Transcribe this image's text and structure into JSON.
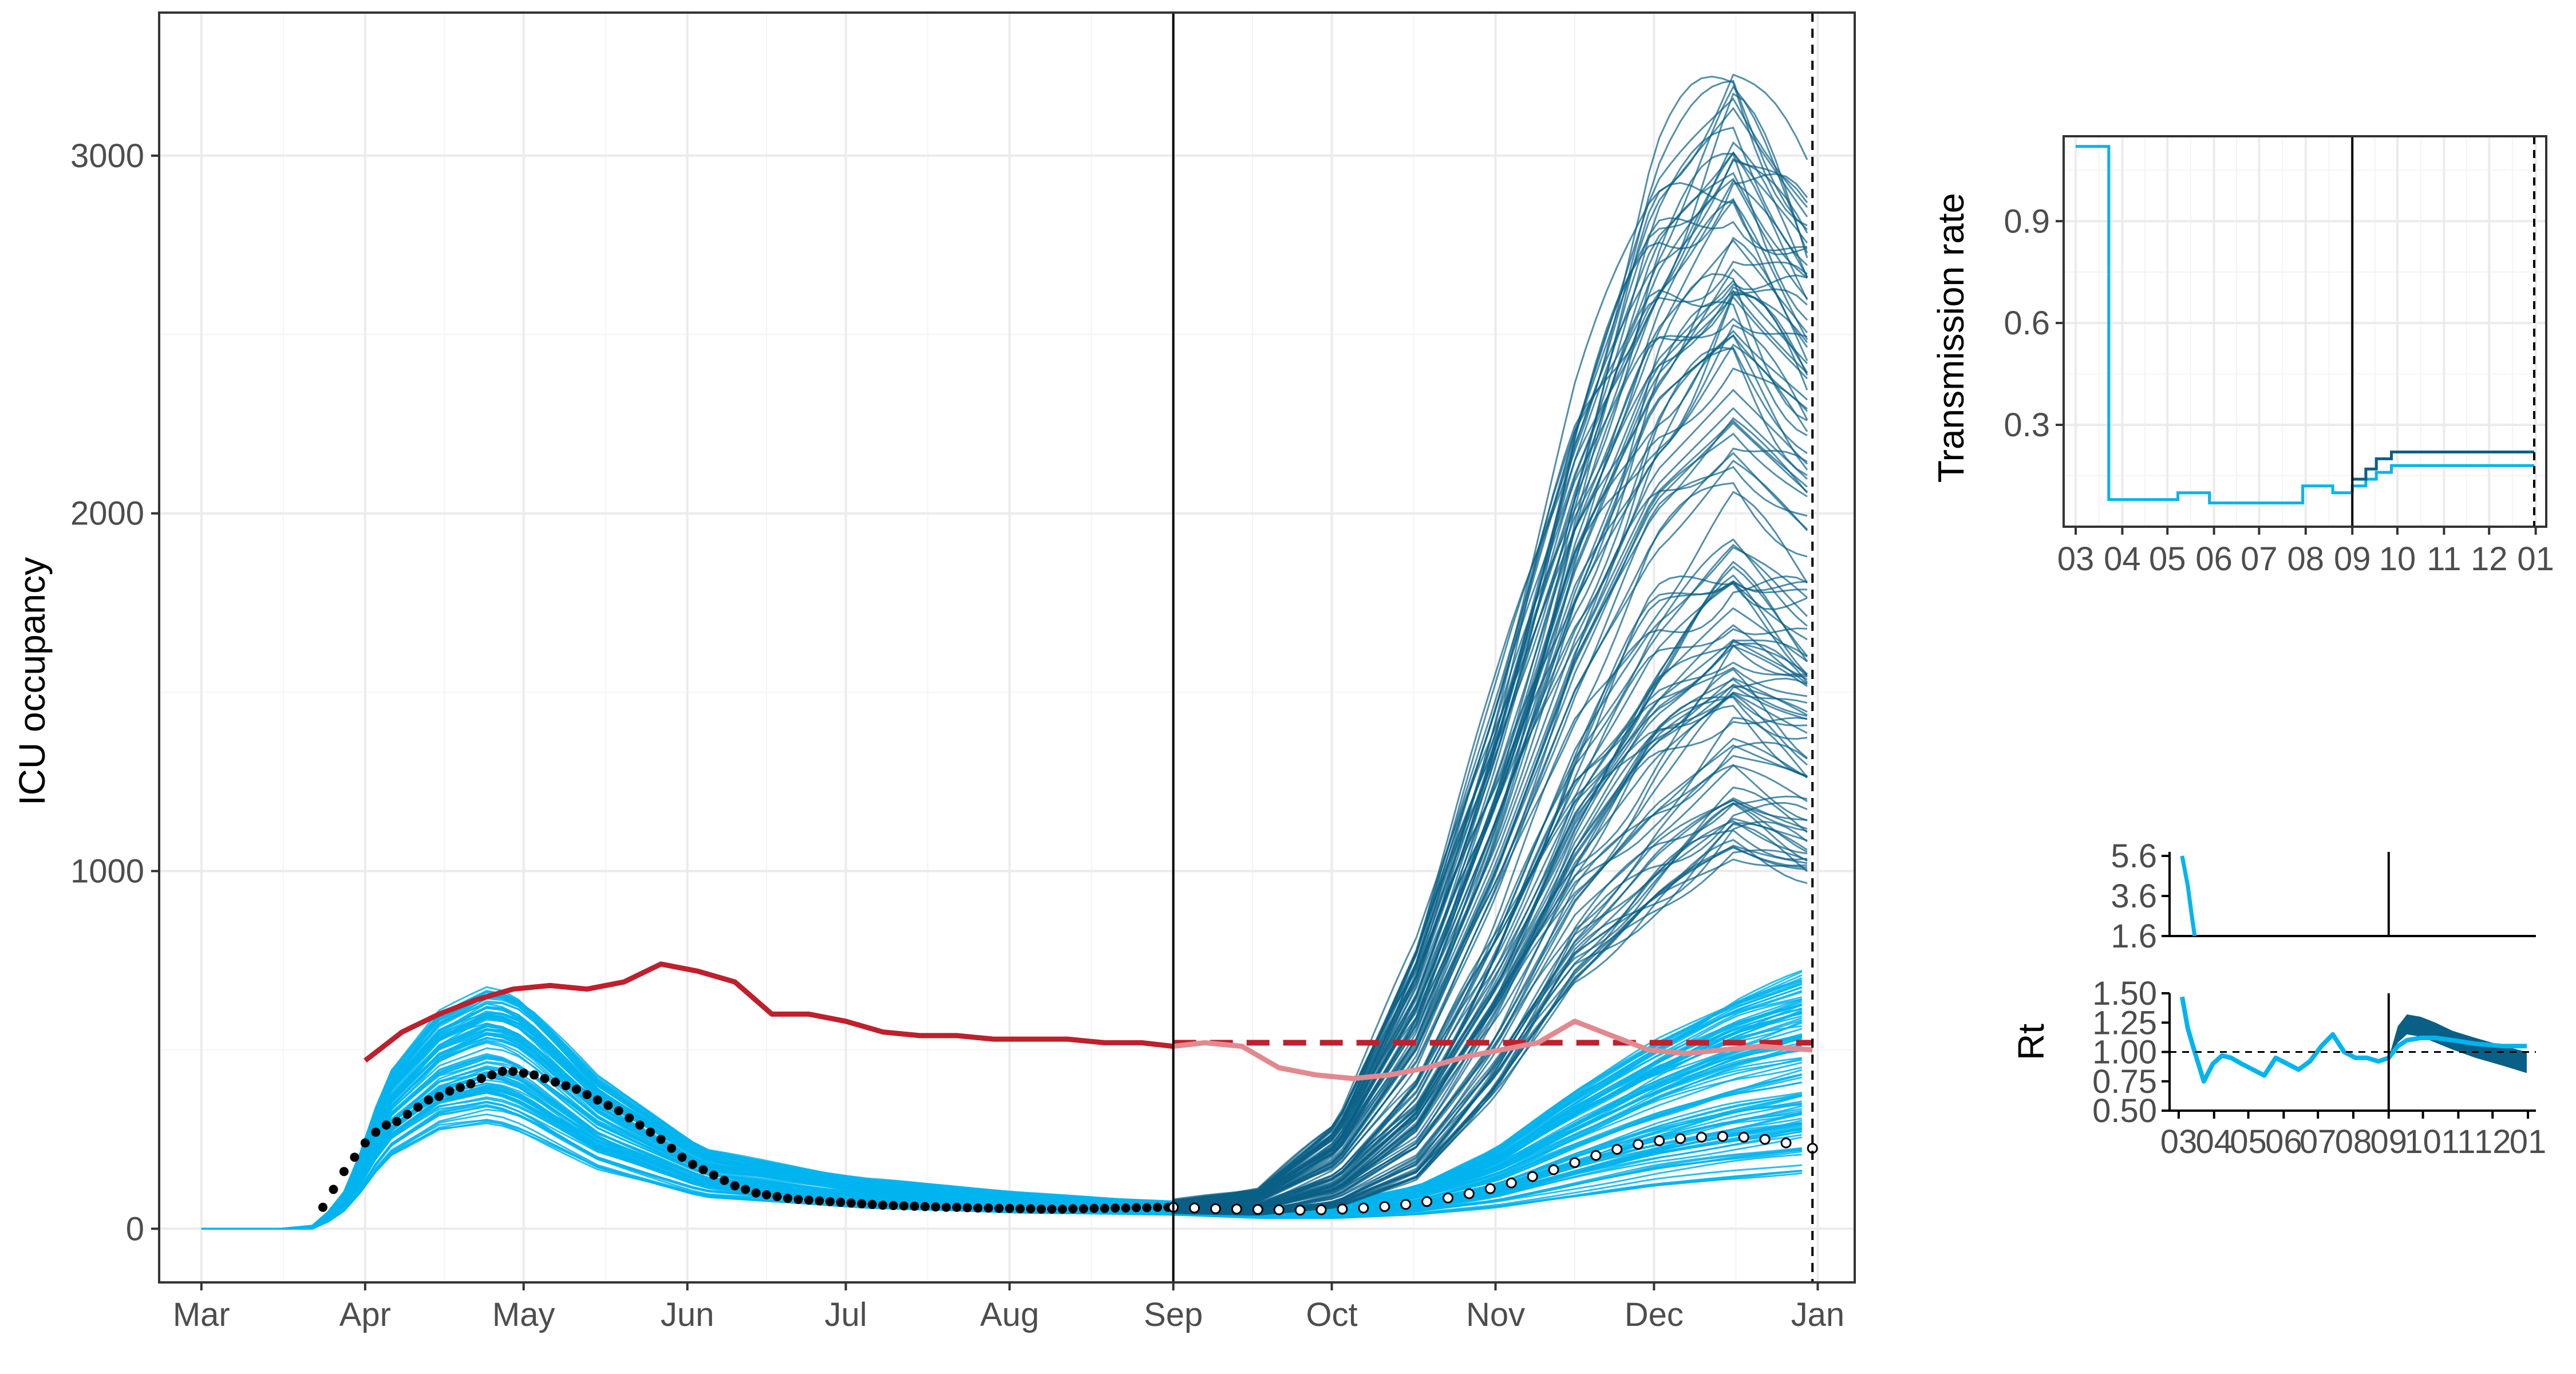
{
  "chart_data": [
    {
      "type": "line",
      "ylabel": "ICU occupancy",
      "xlabel": "",
      "x_ticks": [
        "Mar",
        "Apr",
        "May",
        "Jun",
        "Jul",
        "Aug",
        "Sep",
        "Oct",
        "Nov",
        "Dec",
        "Jan"
      ],
      "x_range_days": [
        -8,
        313
      ],
      "y_ticks": [
        0,
        1000,
        2000,
        3000
      ],
      "ylim": [
        -150,
        3400
      ],
      "grid": true,
      "vertical_lines": [
        {
          "x_day": 184,
          "style": "solid"
        },
        {
          "x_day": 305,
          "style": "dashed"
        }
      ],
      "reference_line": {
        "y": 520,
        "x_from_day": 184,
        "x_to_day": 305,
        "color": "#c01f2c",
        "style": "dashed"
      },
      "series": [
        {
          "color": "#c01f2c",
          "x_day": [
            31,
            38,
            45,
            52,
            59,
            66,
            73,
            80,
            87,
            94,
            101,
            108,
            115,
            122,
            129,
            136,
            143,
            150,
            157,
            164,
            171,
            178,
            184
          ],
          "values": [
            470,
            550,
            600,
            640,
            670,
            680,
            670,
            690,
            740,
            720,
            690,
            600,
            600,
            580,
            550,
            540,
            540,
            530,
            530,
            530,
            520,
            520,
            510
          ]
        },
        {
          "color": "#e2898f",
          "x_day": [
            184,
            190,
            197,
            204,
            211,
            218,
            225,
            232,
            239,
            246,
            253,
            260,
            267,
            274,
            281,
            288,
            295,
            305
          ],
          "values": [
            510,
            520,
            510,
            450,
            430,
            420,
            430,
            450,
            480,
            500,
            520,
            580,
            540,
            500,
            490,
            500,
            510,
            500
          ]
        },
        {
          "type": "band",
          "color": "#00b4ef",
          "x_day": [
            0,
            15,
            22,
            28,
            35,
            45,
            55,
            61,
            75,
            95,
            125,
            155,
            184,
            200,
            215,
            230,
            245,
            260,
            275,
            290,
            305
          ],
          "lower": [
            0,
            0,
            0,
            60,
            200,
            280,
            300,
            270,
            170,
            90,
            60,
            45,
            40,
            30,
            30,
            40,
            60,
            90,
            120,
            140,
            160
          ],
          "upper": [
            0,
            0,
            10,
            120,
            420,
            600,
            680,
            640,
            420,
            220,
            140,
            100,
            75,
            60,
            70,
            120,
            220,
            380,
            520,
            640,
            720
          ]
        },
        {
          "type": "band",
          "color": "#0a5f86",
          "x_day": [
            184,
            200,
            215,
            230,
            245,
            260,
            275,
            290,
            305
          ],
          "lower": [
            45,
            40,
            60,
            140,
            380,
            700,
            900,
            1050,
            1000
          ],
          "upper": [
            80,
            110,
            300,
            800,
            1500,
            2300,
            2950,
            3240,
            2900
          ]
        },
        {
          "name": "observed",
          "marker": "black-dots",
          "x_day": [
            23,
            25,
            27,
            29,
            31,
            33,
            35,
            37,
            39,
            41,
            43,
            45,
            47,
            49,
            51,
            53,
            55,
            57,
            59,
            61,
            63,
            65,
            67,
            69,
            71,
            73,
            75,
            77,
            79,
            81,
            83,
            85,
            87,
            89,
            91,
            93,
            95,
            97,
            99,
            101,
            103,
            105,
            107,
            109,
            111,
            113,
            115,
            117,
            119,
            121,
            123,
            125,
            127,
            129,
            131,
            133,
            135,
            137,
            139,
            141,
            143,
            145,
            147,
            149,
            151,
            153,
            155,
            157,
            159,
            161,
            163,
            165,
            167,
            169,
            171,
            173,
            175,
            177,
            179,
            181,
            183
          ],
          "values": [
            60,
            110,
            160,
            200,
            240,
            270,
            290,
            300,
            320,
            340,
            360,
            370,
            385,
            395,
            405,
            420,
            430,
            440,
            440,
            435,
            430,
            420,
            410,
            400,
            390,
            375,
            360,
            345,
            330,
            310,
            290,
            270,
            250,
            225,
            200,
            180,
            165,
            150,
            135,
            120,
            110,
            100,
            95,
            90,
            85,
            82,
            80,
            78,
            76,
            74,
            72,
            70,
            68,
            66,
            65,
            64,
            63,
            62,
            61,
            60,
            60,
            59,
            58,
            58,
            57,
            57,
            56,
            56,
            55,
            55,
            55,
            56,
            56,
            57,
            57,
            58,
            58,
            59,
            59,
            60,
            60
          ]
        },
        {
          "name": "observed_later",
          "marker": "white-dots",
          "x_day": [
            184,
            188,
            192,
            196,
            200,
            204,
            208,
            212,
            216,
            220,
            224,
            228,
            232,
            236,
            240,
            244,
            248,
            252,
            256,
            260,
            264,
            268,
            272,
            276,
            280,
            284,
            288,
            292,
            296,
            300,
            305
          ],
          "values": [
            60,
            58,
            56,
            55,
            54,
            53,
            52,
            53,
            55,
            58,
            62,
            68,
            76,
            86,
            98,
            112,
            128,
            146,
            165,
            185,
            205,
            222,
            236,
            246,
            252,
            256,
            258,
            256,
            250,
            240,
            225
          ]
        }
      ]
    },
    {
      "type": "line",
      "ylabel": "Transmission rate",
      "xlabel": "",
      "x_ticks": [
        "03",
        "04",
        "05",
        "06",
        "07",
        "08",
        "09",
        "10",
        "11",
        "12",
        "01"
      ],
      "y_ticks": [
        "0.3",
        "0.6",
        "0.9"
      ],
      "ylim": [
        0,
        1.15
      ],
      "grid": true,
      "vertical_lines": [
        {
          "x_day": 184,
          "style": "solid"
        },
        {
          "x_day": 305,
          "style": "dashed"
        }
      ],
      "series": [
        {
          "color": "#00b4ef",
          "step": true,
          "x_day": [
            0,
            22,
            22,
            68,
            68,
            89,
            89,
            151,
            151,
            171,
            171,
            184,
            184,
            193,
            193,
            200,
            200,
            210,
            210,
            305
          ],
          "values": [
            1.12,
            1.12,
            0.08,
            0.08,
            0.1,
            0.1,
            0.07,
            0.07,
            0.12,
            0.12,
            0.1,
            0.1,
            0.12,
            0.12,
            0.14,
            0.14,
            0.16,
            0.16,
            0.18,
            0.18
          ]
        },
        {
          "color": "#0a5f86",
          "step": true,
          "x_day": [
            184,
            193,
            193,
            200,
            200,
            210,
            210,
            305
          ],
          "values": [
            0.14,
            0.14,
            0.17,
            0.17,
            0.2,
            0.2,
            0.22,
            0.22
          ]
        }
      ]
    },
    {
      "type": "line",
      "ylabel": "",
      "xlabel": "",
      "y_ticks": [
        "1.6",
        "3.6",
        "5.6"
      ],
      "ylim": [
        1.6,
        5.8
      ],
      "grid": false,
      "vertical_lines": [
        {
          "x_day": 184,
          "style": "solid"
        }
      ],
      "series": [
        {
          "color": "#00b4ef",
          "x_day": [
            3,
            5,
            8,
            11,
            14
          ],
          "values": [
            5.6,
            5.0,
            4.1,
            2.8,
            1.6
          ]
        }
      ]
    },
    {
      "type": "line",
      "ylabel": "Rt",
      "xlabel": "",
      "x_ticks": [
        "03",
        "04",
        "05",
        "06",
        "07",
        "08",
        "09",
        "10",
        "11",
        "12",
        "01"
      ],
      "y_ticks": [
        "0.50",
        "0.75",
        "1.00",
        "1.25",
        "1.50"
      ],
      "ylim": [
        0.5,
        1.5
      ],
      "grid": false,
      "vertical_lines": [
        {
          "x_day": 184,
          "style": "solid"
        }
      ],
      "reference_line": {
        "y": 1.0,
        "style": "dashed"
      },
      "series": [
        {
          "color": "#00b4ef",
          "x_day": [
            3,
            8,
            14,
            22,
            30,
            38,
            46,
            55,
            65,
            75,
            85,
            95,
            105,
            115,
            125,
            135,
            145,
            155,
            165,
            175,
            184,
            192,
            200,
            212,
            225,
            240,
            260,
            285,
            305
          ],
          "values": [
            1.47,
            1.2,
            1.0,
            0.75,
            0.9,
            0.97,
            0.95,
            0.9,
            0.85,
            0.8,
            0.95,
            0.9,
            0.85,
            0.92,
            1.05,
            1.15,
            1.0,
            0.95,
            0.95,
            0.92,
            0.95,
            1.05,
            1.1,
            1.12,
            1.12,
            1.1,
            1.07,
            1.05,
            1.05
          ]
        },
        {
          "color": "#0a5f86",
          "type": "band",
          "x_day": [
            184,
            192,
            200,
            212,
            225,
            240,
            260,
            285,
            305
          ],
          "lower": [
            0.95,
            1.08,
            1.15,
            1.13,
            1.08,
            1.02,
            0.95,
            0.88,
            0.82
          ],
          "upper": [
            0.95,
            1.22,
            1.32,
            1.3,
            1.25,
            1.18,
            1.12,
            1.05,
            1.0
          ]
        }
      ]
    }
  ]
}
